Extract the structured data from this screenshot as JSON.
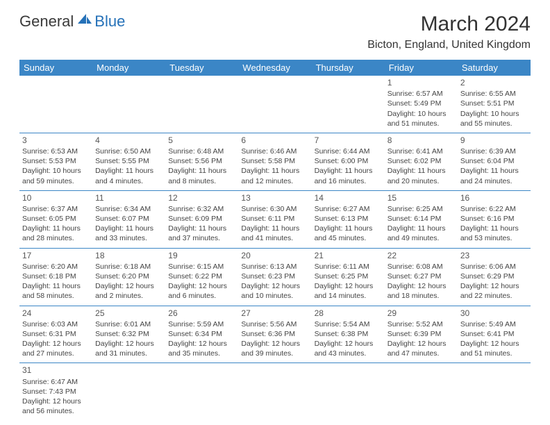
{
  "brand": {
    "general": "General",
    "blue": "Blue"
  },
  "title": "March 2024",
  "location": "Bicton, England, United Kingdom",
  "colors": {
    "header_bg": "#3b86c6",
    "header_text": "#ffffff",
    "brand_blue": "#2571b8",
    "text": "#333333",
    "cell_border": "#3b86c6"
  },
  "fonts": {
    "month_title_size": 30,
    "location_size": 16,
    "weekday_size": 13,
    "cell_size": 10.5,
    "daynum_size": 12
  },
  "weekdays": [
    "Sunday",
    "Monday",
    "Tuesday",
    "Wednesday",
    "Thursday",
    "Friday",
    "Saturday"
  ],
  "weeks": [
    [
      null,
      null,
      null,
      null,
      null,
      {
        "d": "1",
        "sr": "Sunrise: 6:57 AM",
        "ss": "Sunset: 5:49 PM",
        "dl1": "Daylight: 10 hours",
        "dl2": "and 51 minutes."
      },
      {
        "d": "2",
        "sr": "Sunrise: 6:55 AM",
        "ss": "Sunset: 5:51 PM",
        "dl1": "Daylight: 10 hours",
        "dl2": "and 55 minutes."
      }
    ],
    [
      {
        "d": "3",
        "sr": "Sunrise: 6:53 AM",
        "ss": "Sunset: 5:53 PM",
        "dl1": "Daylight: 10 hours",
        "dl2": "and 59 minutes."
      },
      {
        "d": "4",
        "sr": "Sunrise: 6:50 AM",
        "ss": "Sunset: 5:55 PM",
        "dl1": "Daylight: 11 hours",
        "dl2": "and 4 minutes."
      },
      {
        "d": "5",
        "sr": "Sunrise: 6:48 AM",
        "ss": "Sunset: 5:56 PM",
        "dl1": "Daylight: 11 hours",
        "dl2": "and 8 minutes."
      },
      {
        "d": "6",
        "sr": "Sunrise: 6:46 AM",
        "ss": "Sunset: 5:58 PM",
        "dl1": "Daylight: 11 hours",
        "dl2": "and 12 minutes."
      },
      {
        "d": "7",
        "sr": "Sunrise: 6:44 AM",
        "ss": "Sunset: 6:00 PM",
        "dl1": "Daylight: 11 hours",
        "dl2": "and 16 minutes."
      },
      {
        "d": "8",
        "sr": "Sunrise: 6:41 AM",
        "ss": "Sunset: 6:02 PM",
        "dl1": "Daylight: 11 hours",
        "dl2": "and 20 minutes."
      },
      {
        "d": "9",
        "sr": "Sunrise: 6:39 AM",
        "ss": "Sunset: 6:04 PM",
        "dl1": "Daylight: 11 hours",
        "dl2": "and 24 minutes."
      }
    ],
    [
      {
        "d": "10",
        "sr": "Sunrise: 6:37 AM",
        "ss": "Sunset: 6:05 PM",
        "dl1": "Daylight: 11 hours",
        "dl2": "and 28 minutes."
      },
      {
        "d": "11",
        "sr": "Sunrise: 6:34 AM",
        "ss": "Sunset: 6:07 PM",
        "dl1": "Daylight: 11 hours",
        "dl2": "and 33 minutes."
      },
      {
        "d": "12",
        "sr": "Sunrise: 6:32 AM",
        "ss": "Sunset: 6:09 PM",
        "dl1": "Daylight: 11 hours",
        "dl2": "and 37 minutes."
      },
      {
        "d": "13",
        "sr": "Sunrise: 6:30 AM",
        "ss": "Sunset: 6:11 PM",
        "dl1": "Daylight: 11 hours",
        "dl2": "and 41 minutes."
      },
      {
        "d": "14",
        "sr": "Sunrise: 6:27 AM",
        "ss": "Sunset: 6:13 PM",
        "dl1": "Daylight: 11 hours",
        "dl2": "and 45 minutes."
      },
      {
        "d": "15",
        "sr": "Sunrise: 6:25 AM",
        "ss": "Sunset: 6:14 PM",
        "dl1": "Daylight: 11 hours",
        "dl2": "and 49 minutes."
      },
      {
        "d": "16",
        "sr": "Sunrise: 6:22 AM",
        "ss": "Sunset: 6:16 PM",
        "dl1": "Daylight: 11 hours",
        "dl2": "and 53 minutes."
      }
    ],
    [
      {
        "d": "17",
        "sr": "Sunrise: 6:20 AM",
        "ss": "Sunset: 6:18 PM",
        "dl1": "Daylight: 11 hours",
        "dl2": "and 58 minutes."
      },
      {
        "d": "18",
        "sr": "Sunrise: 6:18 AM",
        "ss": "Sunset: 6:20 PM",
        "dl1": "Daylight: 12 hours",
        "dl2": "and 2 minutes."
      },
      {
        "d": "19",
        "sr": "Sunrise: 6:15 AM",
        "ss": "Sunset: 6:22 PM",
        "dl1": "Daylight: 12 hours",
        "dl2": "and 6 minutes."
      },
      {
        "d": "20",
        "sr": "Sunrise: 6:13 AM",
        "ss": "Sunset: 6:23 PM",
        "dl1": "Daylight: 12 hours",
        "dl2": "and 10 minutes."
      },
      {
        "d": "21",
        "sr": "Sunrise: 6:11 AM",
        "ss": "Sunset: 6:25 PM",
        "dl1": "Daylight: 12 hours",
        "dl2": "and 14 minutes."
      },
      {
        "d": "22",
        "sr": "Sunrise: 6:08 AM",
        "ss": "Sunset: 6:27 PM",
        "dl1": "Daylight: 12 hours",
        "dl2": "and 18 minutes."
      },
      {
        "d": "23",
        "sr": "Sunrise: 6:06 AM",
        "ss": "Sunset: 6:29 PM",
        "dl1": "Daylight: 12 hours",
        "dl2": "and 22 minutes."
      }
    ],
    [
      {
        "d": "24",
        "sr": "Sunrise: 6:03 AM",
        "ss": "Sunset: 6:31 PM",
        "dl1": "Daylight: 12 hours",
        "dl2": "and 27 minutes."
      },
      {
        "d": "25",
        "sr": "Sunrise: 6:01 AM",
        "ss": "Sunset: 6:32 PM",
        "dl1": "Daylight: 12 hours",
        "dl2": "and 31 minutes."
      },
      {
        "d": "26",
        "sr": "Sunrise: 5:59 AM",
        "ss": "Sunset: 6:34 PM",
        "dl1": "Daylight: 12 hours",
        "dl2": "and 35 minutes."
      },
      {
        "d": "27",
        "sr": "Sunrise: 5:56 AM",
        "ss": "Sunset: 6:36 PM",
        "dl1": "Daylight: 12 hours",
        "dl2": "and 39 minutes."
      },
      {
        "d": "28",
        "sr": "Sunrise: 5:54 AM",
        "ss": "Sunset: 6:38 PM",
        "dl1": "Daylight: 12 hours",
        "dl2": "and 43 minutes."
      },
      {
        "d": "29",
        "sr": "Sunrise: 5:52 AM",
        "ss": "Sunset: 6:39 PM",
        "dl1": "Daylight: 12 hours",
        "dl2": "and 47 minutes."
      },
      {
        "d": "30",
        "sr": "Sunrise: 5:49 AM",
        "ss": "Sunset: 6:41 PM",
        "dl1": "Daylight: 12 hours",
        "dl2": "and 51 minutes."
      }
    ],
    [
      {
        "d": "31",
        "sr": "Sunrise: 6:47 AM",
        "ss": "Sunset: 7:43 PM",
        "dl1": "Daylight: 12 hours",
        "dl2": "and 56 minutes."
      },
      null,
      null,
      null,
      null,
      null,
      null
    ]
  ]
}
